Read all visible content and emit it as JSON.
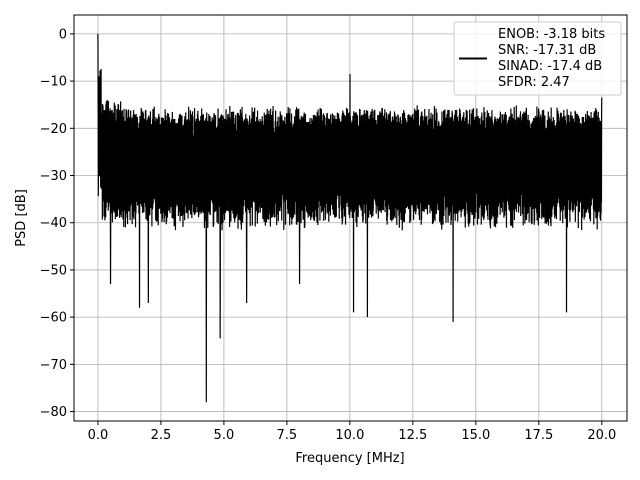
{
  "chart_data": {
    "type": "line",
    "title": "",
    "xlabel": "Frequency [MHz]",
    "ylabel": "PSD [dB]",
    "xlim": [
      -0.95,
      21.0
    ],
    "ylim": [
      -82,
      4
    ],
    "x_ticks": [
      0.0,
      2.5,
      5.0,
      7.5,
      10.0,
      12.5,
      15.0,
      17.5,
      20.0
    ],
    "x_tick_labels": [
      "0.0",
      "2.5",
      "5.0",
      "7.5",
      "10.0",
      "12.5",
      "15.0",
      "17.5",
      "20.0"
    ],
    "y_ticks": [
      0,
      -10,
      -20,
      -30,
      -40,
      -50,
      -60,
      -70,
      -80
    ],
    "y_tick_labels": [
      "0",
      "−10",
      "−20",
      "−30",
      "−40",
      "−50",
      "−60",
      "−70",
      "−80"
    ],
    "grid": true,
    "legend_position": "top-right",
    "series": [
      {
        "name": "ENOB: -3.18 bits\nSNR: -17.31 dB\nSINAD: -17.4 dB\nSFDR: 2.47",
        "legend_lines": [
          "ENOB: -3.18 bits",
          "SNR: -17.31 dB",
          "SINAD: -17.4 dB",
          "SFDR: 2.47"
        ],
        "color": "#000000",
        "x_range": [
          0.0,
          20.0
        ],
        "noise_floor_db": -28,
        "upper_envelope_db": -17,
        "lower_envelope_db": -40,
        "peaks": [
          {
            "x": 0.0,
            "y": 0.0
          },
          {
            "x": 10.0,
            "y": -8.5
          },
          {
            "x": 20.0,
            "y": -13.5
          }
        ],
        "dips": [
          {
            "x": 0.5,
            "y": -53
          },
          {
            "x": 1.65,
            "y": -58
          },
          {
            "x": 2.0,
            "y": -57
          },
          {
            "x": 4.3,
            "y": -78
          },
          {
            "x": 4.85,
            "y": -64.5
          },
          {
            "x": 5.9,
            "y": -57
          },
          {
            "x": 8.0,
            "y": -53
          },
          {
            "x": 10.15,
            "y": -59
          },
          {
            "x": 10.7,
            "y": -60
          },
          {
            "x": 14.1,
            "y": -61
          },
          {
            "x": 18.6,
            "y": -59
          }
        ]
      }
    ]
  },
  "colors": {
    "line": "#000000",
    "grid": "#b0b0b0",
    "axes": "#000000",
    "legend_border": "#cccccc"
  }
}
